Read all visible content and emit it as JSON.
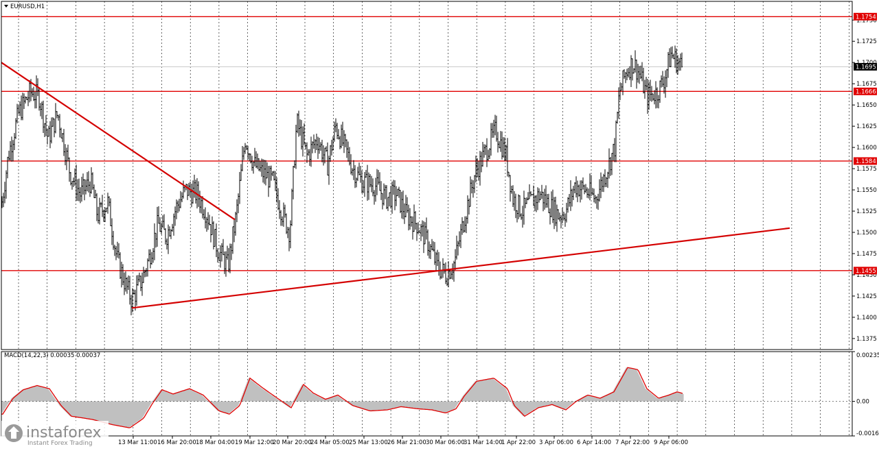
{
  "chart_data": {
    "type": "candlestick",
    "symbol": "EURUSD,H1",
    "price_axis": {
      "range": [
        1.1362,
        1.1772
      ],
      "ticks": [
        "1.1750",
        "1.1725",
        "1.1700",
        "1.1675",
        "1.1650",
        "1.1625",
        "1.1600",
        "1.1575",
        "1.1550",
        "1.1525",
        "1.1500",
        "1.1475",
        "1.1450",
        "1.1425",
        "1.1400",
        "1.1375"
      ]
    },
    "current_price": "1.1695",
    "levels": [
      {
        "label": "1.1754",
        "value": 1.1754
      },
      {
        "label": "1.1666",
        "value": 1.1666
      },
      {
        "label": "1.1584",
        "value": 1.1584
      },
      {
        "label": "1.1455",
        "value": 1.1455
      }
    ],
    "trendlines": [
      {
        "name": "down",
        "from": {
          "bar": 0,
          "price": 1.17
        },
        "to": {
          "bar": 340,
          "price": 1.1515
        }
      },
      {
        "name": "up",
        "from": {
          "bar": 190,
          "price": 1.1411
        },
        "to": {
          "bar": 1148,
          "price": 1.1505
        }
      }
    ],
    "close_path": [
      [
        0,
        1.153
      ],
      [
        10,
        1.159
      ],
      [
        25,
        1.164
      ],
      [
        42,
        1.1665
      ],
      [
        55,
        1.166
      ],
      [
        68,
        1.161
      ],
      [
        82,
        1.164
      ],
      [
        100,
        1.157
      ],
      [
        115,
        1.1545
      ],
      [
        130,
        1.156
      ],
      [
        140,
        1.152
      ],
      [
        155,
        1.1535
      ],
      [
        168,
        1.147
      ],
      [
        180,
        1.144
      ],
      [
        190,
        1.142
      ],
      [
        205,
        1.1445
      ],
      [
        215,
        1.147
      ],
      [
        228,
        1.151
      ],
      [
        240,
        1.1495
      ],
      [
        255,
        1.153
      ],
      [
        268,
        1.155
      ],
      [
        285,
        1.1545
      ],
      [
        300,
        1.152
      ],
      [
        315,
        1.148
      ],
      [
        330,
        1.146
      ],
      [
        342,
        1.152
      ],
      [
        355,
        1.161
      ],
      [
        368,
        1.158
      ],
      [
        380,
        1.157
      ],
      [
        395,
        1.156
      ],
      [
        410,
        1.152
      ],
      [
        420,
        1.15
      ],
      [
        430,
        1.163
      ],
      [
        445,
        1.159
      ],
      [
        460,
        1.161
      ],
      [
        475,
        1.158
      ],
      [
        487,
        1.1625
      ],
      [
        500,
        1.16
      ],
      [
        512,
        1.1575
      ],
      [
        525,
        1.156
      ],
      [
        545,
        1.1555
      ],
      [
        560,
        1.154
      ],
      [
        575,
        1.1545
      ],
      [
        590,
        1.152
      ],
      [
        605,
        1.151
      ],
      [
        620,
        1.149
      ],
      [
        635,
        1.146
      ],
      [
        648,
        1.145
      ],
      [
        660,
        1.1465
      ],
      [
        675,
        1.152
      ],
      [
        690,
        1.157
      ],
      [
        705,
        1.1595
      ],
      [
        720,
        1.162
      ],
      [
        735,
        1.159
      ],
      [
        745,
        1.154
      ],
      [
        758,
        1.1525
      ],
      [
        770,
        1.1535
      ],
      [
        785,
        1.1545
      ],
      [
        800,
        1.153
      ],
      [
        812,
        1.152
      ],
      [
        822,
        1.1525
      ],
      [
        835,
        1.1555
      ],
      [
        850,
        1.155
      ],
      [
        865,
        1.154
      ],
      [
        880,
        1.157
      ],
      [
        893,
        1.16
      ],
      [
        900,
        1.1665
      ],
      [
        910,
        1.169
      ],
      [
        920,
        1.17
      ],
      [
        930,
        1.1685
      ],
      [
        940,
        1.166
      ],
      [
        955,
        1.1665
      ],
      [
        965,
        1.168
      ],
      [
        975,
        1.171
      ],
      [
        985,
        1.17
      ],
      [
        992,
        1.1695
      ]
    ],
    "macd": {
      "label": "MACD(14,22,3) 0.00035 0.00037",
      "range": [
        -0.00163,
        0.00235
      ],
      "ticks": [
        "0.00235",
        "0.00",
        "-0.00163"
      ],
      "path": [
        [
          0,
          -0.0006
        ],
        [
          15,
          0.00015
        ],
        [
          30,
          0.00055
        ],
        [
          50,
          0.00075
        ],
        [
          68,
          0.0006
        ],
        [
          85,
          -0.0002
        ],
        [
          100,
          -0.0007
        ],
        [
          130,
          -0.00085
        ],
        [
          160,
          -0.0011
        ],
        [
          185,
          -0.00125
        ],
        [
          205,
          -0.0008
        ],
        [
          218,
          -0.0001
        ],
        [
          232,
          0.00055
        ],
        [
          248,
          0.00035
        ],
        [
          272,
          0.0006
        ],
        [
          292,
          0.0003
        ],
        [
          315,
          -0.00045
        ],
        [
          330,
          -0.0006
        ],
        [
          345,
          -0.0002
        ],
        [
          360,
          0.0011
        ],
        [
          378,
          0.00065
        ],
        [
          400,
          0.00015
        ],
        [
          420,
          -0.0003
        ],
        [
          438,
          0.0008
        ],
        [
          452,
          0.0004
        ],
        [
          470,
          0.0001
        ],
        [
          488,
          0.0003
        ],
        [
          510,
          -0.0002
        ],
        [
          535,
          -0.00045
        ],
        [
          560,
          -0.0004
        ],
        [
          580,
          -0.00025
        ],
        [
          605,
          -0.00035
        ],
        [
          625,
          -0.0004
        ],
        [
          645,
          -0.00055
        ],
        [
          660,
          -0.00035
        ],
        [
          672,
          0.00025
        ],
        [
          690,
          0.00095
        ],
        [
          715,
          0.0011
        ],
        [
          735,
          0.0006
        ],
        [
          745,
          -0.0002
        ],
        [
          760,
          -0.0007
        ],
        [
          780,
          -0.0003
        ],
        [
          800,
          -0.00015
        ],
        [
          820,
          -0.0004
        ],
        [
          835,
          0.0
        ],
        [
          852,
          0.0003
        ],
        [
          870,
          0.00015
        ],
        [
          890,
          0.00045
        ],
        [
          910,
          0.0016
        ],
        [
          925,
          0.0015
        ],
        [
          938,
          0.0006
        ],
        [
          955,
          0.00015
        ],
        [
          970,
          0.0003
        ],
        [
          982,
          0.00045
        ],
        [
          993,
          0.00035
        ]
      ]
    },
    "time_axis": [
      {
        "label": "13 Mar 11:00",
        "bar": 192
      },
      {
        "label": "16 Mar 20:00",
        "bar": 249
      },
      {
        "label": "18 Mar 04:00",
        "bar": 305
      },
      {
        "label": "19 Mar 12:00",
        "bar": 362
      },
      {
        "label": "20 Mar 20:00",
        "bar": 417
      },
      {
        "label": "24 Mar 05:00",
        "bar": 472
      },
      {
        "label": "25 Mar 13:00",
        "bar": 528
      },
      {
        "label": "26 Mar 21:00",
        "bar": 584
      },
      {
        "label": "30 Mar 06:00",
        "bar": 640
      },
      {
        "label": "31 Mar 14:00",
        "bar": 695
      },
      {
        "label": "1 Apr 22:00",
        "bar": 750
      },
      {
        "label": "3 Apr 06:00",
        "bar": 805
      },
      {
        "label": "6 Apr 14:00",
        "bar": 860
      },
      {
        "label": "7 Apr 22:00",
        "bar": 916
      },
      {
        "label": "9 Apr 06:00",
        "bar": 972
      }
    ],
    "colors": {
      "level": "#e00000",
      "trend": "#d40000",
      "candle": "#000000",
      "macd_hist": "#c0c0c0",
      "signal": "#e00000"
    }
  },
  "branding": {
    "name": "instaforex",
    "tagline": "Instant Forex Trading"
  }
}
